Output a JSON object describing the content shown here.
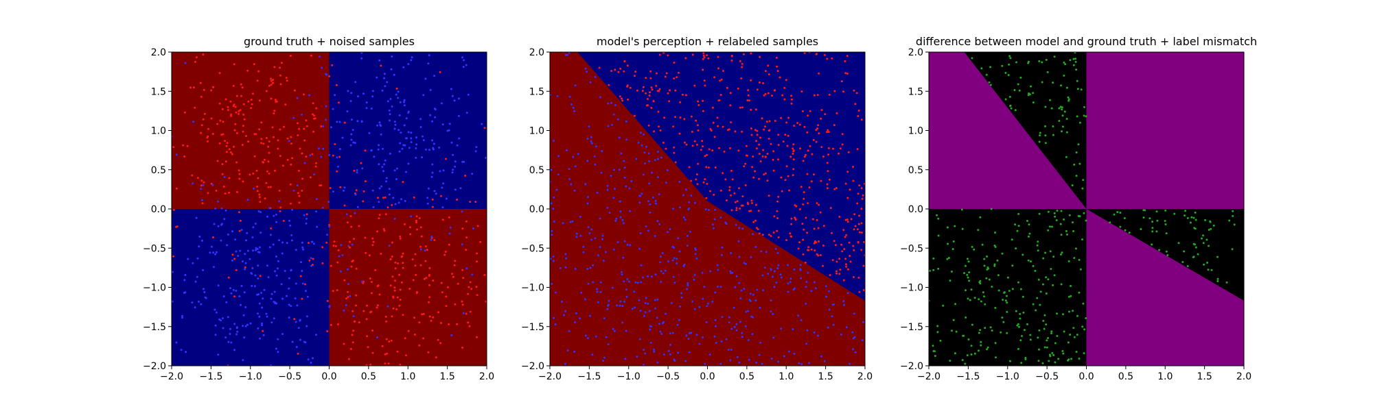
{
  "chart_data": [
    {
      "type": "scatter",
      "title": "ground truth + noised samples",
      "xlim": [
        -2.0,
        2.0
      ],
      "ylim": [
        -2.0,
        2.0
      ],
      "xticks": [
        "−2.0",
        "−1.5",
        "−1.0",
        "−0.5",
        "0.0",
        "0.5",
        "1.0",
        "1.5",
        "2.0"
      ],
      "yticks": [
        "−2.0",
        "−1.5",
        "−1.0",
        "−0.5",
        "0.0",
        "0.5",
        "1.0",
        "1.5",
        "2.0"
      ],
      "background": {
        "kind": "quadrants",
        "regions": [
          {
            "polygon": [
              [
                -2,
                0
              ],
              [
                0,
                0
              ],
              [
                0,
                2
              ],
              [
                -2,
                2
              ]
            ],
            "color": "#800000"
          },
          {
            "polygon": [
              [
                0,
                0
              ],
              [
                2,
                0
              ],
              [
                2,
                2
              ],
              [
                0,
                2
              ]
            ],
            "color": "#000080"
          },
          {
            "polygon": [
              [
                -2,
                -2
              ],
              [
                0,
                -2
              ],
              [
                0,
                0
              ],
              [
                -2,
                0
              ]
            ],
            "color": "#000080"
          },
          {
            "polygon": [
              [
                0,
                -2
              ],
              [
                2,
                -2
              ],
              [
                2,
                0
              ],
              [
                0,
                0
              ]
            ],
            "color": "#800000"
          }
        ]
      },
      "series": [
        {
          "color": "#ff1a1a",
          "approx_count": 500,
          "region": "x*y<0"
        },
        {
          "color": "#3333ff",
          "approx_count": 500,
          "region": "x*y>0"
        }
      ]
    },
    {
      "type": "scatter",
      "title": "model's perception + relabeled samples",
      "xlim": [
        -2.0,
        2.0
      ],
      "ylim": [
        -2.0,
        2.0
      ],
      "xticks": [
        "−2.0",
        "−1.5",
        "−1.0",
        "−0.5",
        "0.0",
        "0.5",
        "1.0",
        "1.5",
        "2.0"
      ],
      "yticks": [
        "−2.0",
        "−1.5",
        "−1.0",
        "−0.5",
        "0.0",
        "0.5",
        "1.0",
        "1.5",
        "2.0"
      ],
      "background": {
        "kind": "boundary",
        "boundary": [
          [
            -1.65,
            2.0
          ],
          [
            0.0,
            0.1
          ],
          [
            2.0,
            -1.17
          ]
        ],
        "above_color": "#000080",
        "below_color": "#800000"
      },
      "series": [
        {
          "color": "#ff1a1a",
          "approx_count": 500,
          "region": "above boundary"
        },
        {
          "color": "#3333ff",
          "approx_count": 500,
          "region": "below boundary"
        }
      ]
    },
    {
      "type": "scatter",
      "title": "difference between model and ground truth + label mismatch",
      "xlim": [
        -2.0,
        2.0
      ],
      "ylim": [
        -2.0,
        2.0
      ],
      "xticks": [
        "−2.0",
        "−1.5",
        "−1.0",
        "−0.5",
        "0.0",
        "0.5",
        "1.0",
        "1.5",
        "2.0"
      ],
      "yticks": [
        "−2.0",
        "−1.5",
        "−1.0",
        "−0.5",
        "0.0",
        "0.5",
        "1.0",
        "1.5",
        "2.0"
      ],
      "background": {
        "kind": "regions",
        "base_color": "#800080",
        "regions": [
          {
            "polygon": [
              [
                -1.55,
                2
              ],
              [
                0,
                2
              ],
              [
                0,
                0
              ]
            ],
            "color": "#000000"
          },
          {
            "polygon": [
              [
                -2,
                -2
              ],
              [
                0,
                -2
              ],
              [
                0,
                0
              ],
              [
                -2,
                0
              ]
            ],
            "color": "#000000"
          },
          {
            "polygon": [
              [
                0,
                0
              ],
              [
                2,
                0
              ],
              [
                2,
                -1.17
              ]
            ],
            "color": "#000000"
          }
        ]
      },
      "series": [
        {
          "color": "#22aa22",
          "approx_count": 420,
          "region": "black regions"
        }
      ]
    }
  ]
}
